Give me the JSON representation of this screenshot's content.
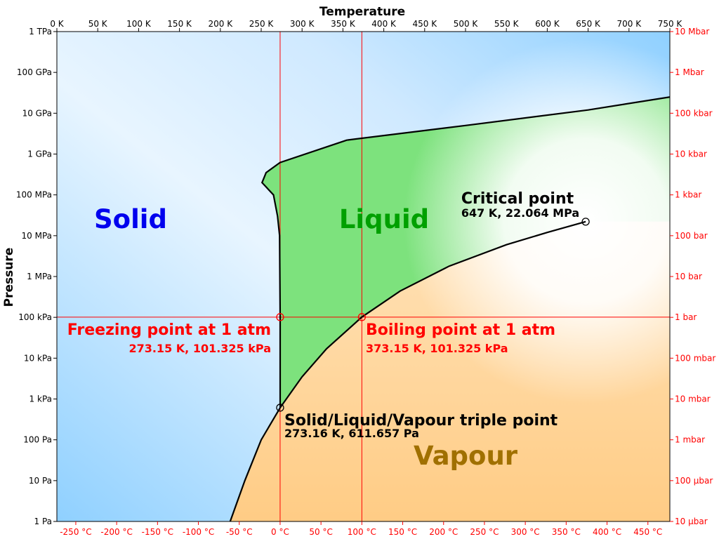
{
  "chart_data": {
    "type": "phase-diagram",
    "title": "",
    "axes": {
      "top_title": "Temperature",
      "left_title": "Pressure",
      "x_kelvin_range": [
        0,
        750
      ],
      "y_log10_pa_range": [
        0,
        12
      ],
      "top_ticks_kelvin": [
        {
          "value": 0,
          "label": "0 K"
        },
        {
          "value": 50,
          "label": "50 K"
        },
        {
          "value": 100,
          "label": "100 K"
        },
        {
          "value": 150,
          "label": "150 K"
        },
        {
          "value": 200,
          "label": "200 K"
        },
        {
          "value": 250,
          "label": "250 K"
        },
        {
          "value": 300,
          "label": "300 K"
        },
        {
          "value": 350,
          "label": "350 K"
        },
        {
          "value": 400,
          "label": "400 K"
        },
        {
          "value": 450,
          "label": "450 K"
        },
        {
          "value": 500,
          "label": "500 K"
        },
        {
          "value": 550,
          "label": "550 K"
        },
        {
          "value": 600,
          "label": "600 K"
        },
        {
          "value": 650,
          "label": "650 K"
        },
        {
          "value": 700,
          "label": "700 K"
        },
        {
          "value": 750,
          "label": "750 K"
        }
      ],
      "bottom_ticks_celsius": [
        {
          "value": -250,
          "label": "-250 °C"
        },
        {
          "value": -200,
          "label": "-200 °C"
        },
        {
          "value": -150,
          "label": "-150 °C"
        },
        {
          "value": -100,
          "label": "-100 °C"
        },
        {
          "value": -50,
          "label": "-50 °C"
        },
        {
          "value": 0,
          "label": "0 °C"
        },
        {
          "value": 50,
          "label": "50 °C"
        },
        {
          "value": 100,
          "label": "100 °C"
        },
        {
          "value": 150,
          "label": "150 °C"
        },
        {
          "value": 200,
          "label": "200 °C"
        },
        {
          "value": 250,
          "label": "250 °C"
        },
        {
          "value": 300,
          "label": "300 °C"
        },
        {
          "value": 350,
          "label": "350 °C"
        },
        {
          "value": 400,
          "label": "400 °C"
        },
        {
          "value": 450,
          "label": "450 °C"
        }
      ],
      "left_ticks_pascal": [
        {
          "value": 1000000000000.0,
          "label": "1 TPa"
        },
        {
          "value": 100000000000.0,
          "label": "100 GPa"
        },
        {
          "value": 10000000000.0,
          "label": "10 GPa"
        },
        {
          "value": 1000000000.0,
          "label": "1 GPa"
        },
        {
          "value": 100000000.0,
          "label": "100 MPa"
        },
        {
          "value": 10000000.0,
          "label": "10 MPa"
        },
        {
          "value": 1000000.0,
          "label": "1 MPa"
        },
        {
          "value": 100000.0,
          "label": "100 kPa"
        },
        {
          "value": 10000.0,
          "label": "10 kPa"
        },
        {
          "value": 1000.0,
          "label": "1 kPa"
        },
        {
          "value": 100.0,
          "label": "100 Pa"
        },
        {
          "value": 10.0,
          "label": "10 Pa"
        },
        {
          "value": 1,
          "label": "1 Pa"
        }
      ],
      "right_ticks_bar": [
        {
          "value": 1000000000000.0,
          "label": "10 Mbar"
        },
        {
          "value": 100000000000.0,
          "label": "1 Mbar"
        },
        {
          "value": 10000000000.0,
          "label": "100 kbar"
        },
        {
          "value": 1000000000.0,
          "label": "10 kbar"
        },
        {
          "value": 100000000.0,
          "label": "1 kbar"
        },
        {
          "value": 10000000.0,
          "label": "100 bar"
        },
        {
          "value": 1000000.0,
          "label": "10 bar"
        },
        {
          "value": 100000.0,
          "label": "1 bar"
        },
        {
          "value": 10000.0,
          "label": "100 mbar"
        },
        {
          "value": 1000.0,
          "label": "10 mbar"
        },
        {
          "value": 100.0,
          "label": "1 mbar"
        },
        {
          "value": 10.0,
          "label": "100 µbar"
        },
        {
          "value": 1,
          "label": "10 µbar"
        }
      ]
    },
    "regions": {
      "solid": {
        "label": "Solid",
        "color": "#0000ee"
      },
      "liquid": {
        "label": "Liquid",
        "color": "#00a000"
      },
      "vapour": {
        "label": "Vapour",
        "color": "#a07000"
      }
    },
    "annotations": {
      "critical": {
        "title": "Critical point",
        "sub": "647 K, 22.064 MPa",
        "T_kelvin": 647,
        "P_pa": 22064000
      },
      "freezing": {
        "title": "Freezing point at 1 atm",
        "sub": "273.15 K, 101.325 kPa",
        "T_kelvin": 273.15,
        "P_pa": 101325
      },
      "boiling": {
        "title": "Boiling point at 1 atm",
        "sub": "373.15 K, 101.325 kPa",
        "T_kelvin": 373.15,
        "P_pa": 101325
      },
      "triple": {
        "title": "Solid/Liquid/Vapour triple point",
        "sub": "273.16 K, 611.657 Pa",
        "T_kelvin": 273.16,
        "P_pa": 611.657
      }
    },
    "boundaries": {
      "solid_liquid": [
        [
          273.16,
          611.657
        ],
        [
          273.16,
          100000
        ],
        [
          272.5,
          10000000
        ],
        [
          270,
          30000000
        ],
        [
          265,
          100000000
        ],
        [
          251,
          200000000
        ],
        [
          256,
          350000000
        ],
        [
          273,
          620000000
        ],
        [
          355,
          2200000000
        ]
      ],
      "solid_high": [
        [
          355,
          2200000000
        ],
        [
          500,
          5000000000
        ],
        [
          650,
          12000000000
        ],
        [
          750,
          25000000000
        ]
      ],
      "vaporization": [
        [
          273.16,
          611.657
        ],
        [
          300,
          3500
        ],
        [
          330,
          17000
        ],
        [
          373.15,
          101325
        ],
        [
          420,
          440000
        ],
        [
          480,
          1800000
        ],
        [
          550,
          6000000
        ],
        [
          600,
          12000000
        ],
        [
          647,
          22064000
        ]
      ],
      "sublimation": [
        [
          212,
          1
        ],
        [
          230,
          10
        ],
        [
          250,
          100
        ],
        [
          273.16,
          611.657
        ]
      ]
    },
    "colors": {
      "boundary": "#000000",
      "reference_line": "#ff0000",
      "celsius_ticks": "#ff0000",
      "bar_ticks": "#ff0000",
      "solid_fill": "#8fd0ff",
      "liquid_fill": "#7de27d",
      "vapour_fill": "#ffcf8a"
    }
  }
}
